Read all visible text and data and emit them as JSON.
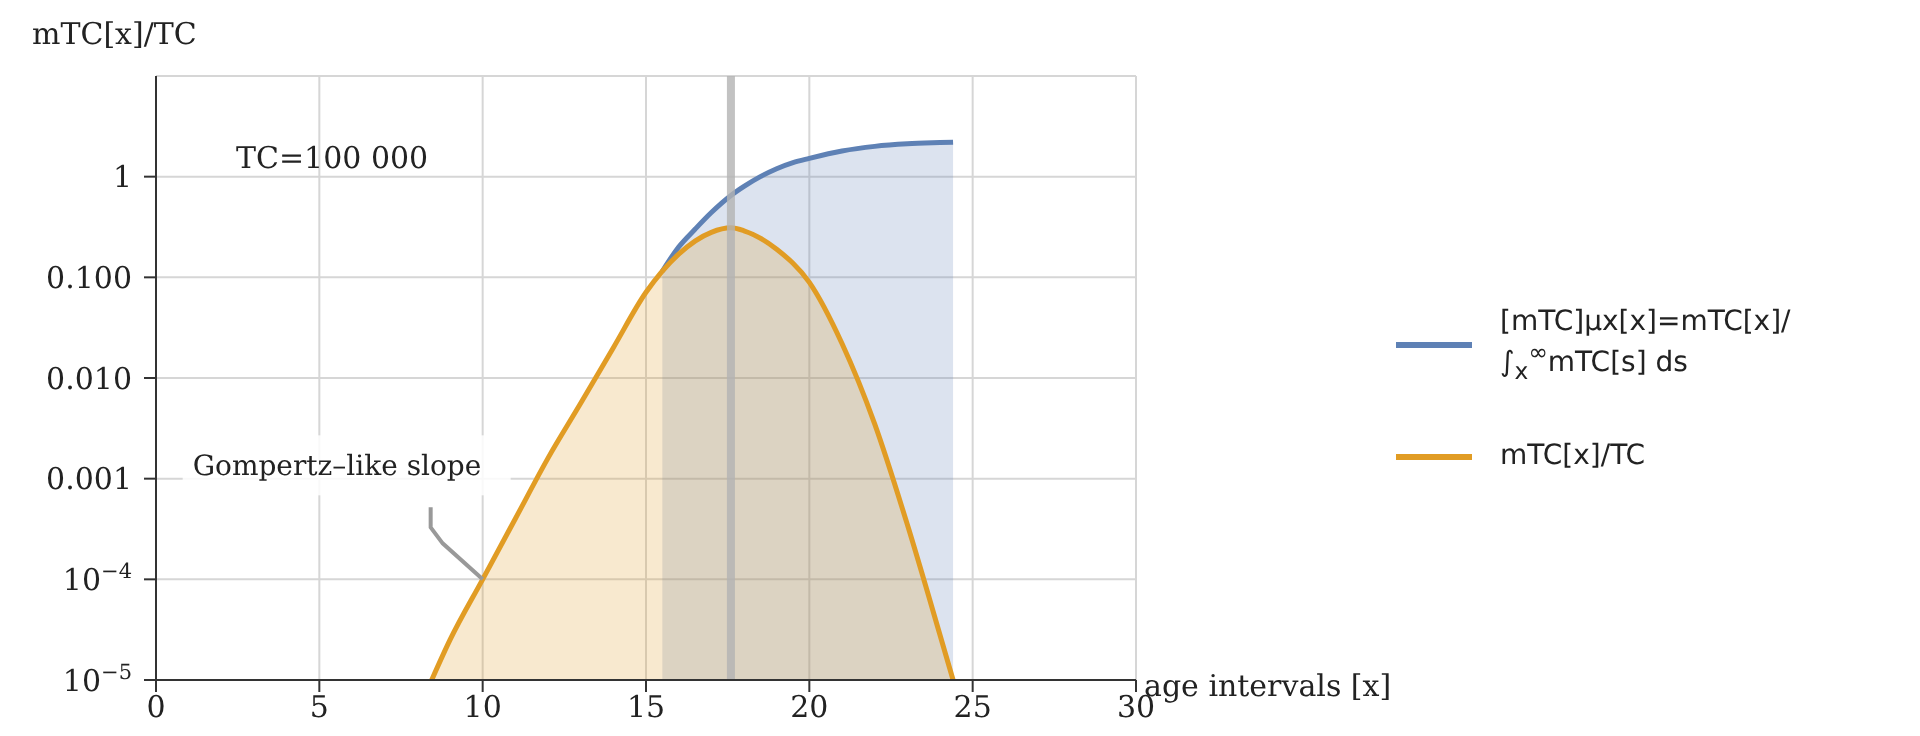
{
  "chart_data": {
    "type": "area",
    "xlabel": "age intervals [x]",
    "ylabel": "mTC[x]/TC",
    "log": "y",
    "grid": true,
    "legend": "right",
    "line_style": "solid",
    "marker": "none",
    "xlim": [
      0,
      30
    ],
    "xticks": [
      0,
      5,
      10,
      15,
      20,
      25,
      30
    ],
    "ylim": [
      1e-05,
      10
    ],
    "yticks": [
      {
        "value": 1e-05,
        "label": "10$^{−5}$"
      },
      {
        "value": 0.0001,
        "label": "10$^{−4}$"
      },
      {
        "value": 0.001,
        "label": "0.001"
      },
      {
        "value": 0.01,
        "label": "0.010"
      },
      {
        "value": 0.1,
        "label": "0.100"
      },
      1
    ],
    "series": [
      {
        "name": "[mTC]μx[x]=mTC[x]/∫$_{x}$$^{∞}$mTC[s] ds",
        "color": "#5e81b5",
        "x": [
          15.5,
          16,
          16.5,
          17,
          17.6,
          18,
          18.5,
          19,
          19.5,
          20,
          21,
          22,
          23,
          24,
          24.4
        ],
        "values": [
          0.115,
          0.2,
          0.3,
          0.44,
          0.65,
          0.8,
          1.0,
          1.2,
          1.38,
          1.52,
          1.8,
          2.0,
          2.12,
          2.18,
          2.2
        ]
      },
      {
        "name": "mTC[x]/TC",
        "color": "#e19c24",
        "x": [
          8.44,
          9,
          10,
          11,
          12,
          13,
          14,
          15,
          16,
          17,
          17.6,
          18,
          19,
          20,
          21,
          22,
          23,
          24,
          24.4
        ],
        "values": [
          1e-05,
          2.5e-05,
          0.0001,
          0.0004,
          0.0016,
          0.0056,
          0.02,
          0.071,
          0.17,
          0.28,
          0.31,
          0.29,
          0.19,
          0.089,
          0.022,
          0.0035,
          0.00035,
          2.8e-05,
          1e-05
        ]
      }
    ],
    "ref_lines": [
      {
        "axis": "x",
        "value": 17.6,
        "color": "#b3b3b3"
      }
    ],
    "annotations": [
      "TC=100 000",
      {
        "text": "Gompertz–like slope",
        "x": 10,
        "y": 0.0001
      }
    ]
  }
}
